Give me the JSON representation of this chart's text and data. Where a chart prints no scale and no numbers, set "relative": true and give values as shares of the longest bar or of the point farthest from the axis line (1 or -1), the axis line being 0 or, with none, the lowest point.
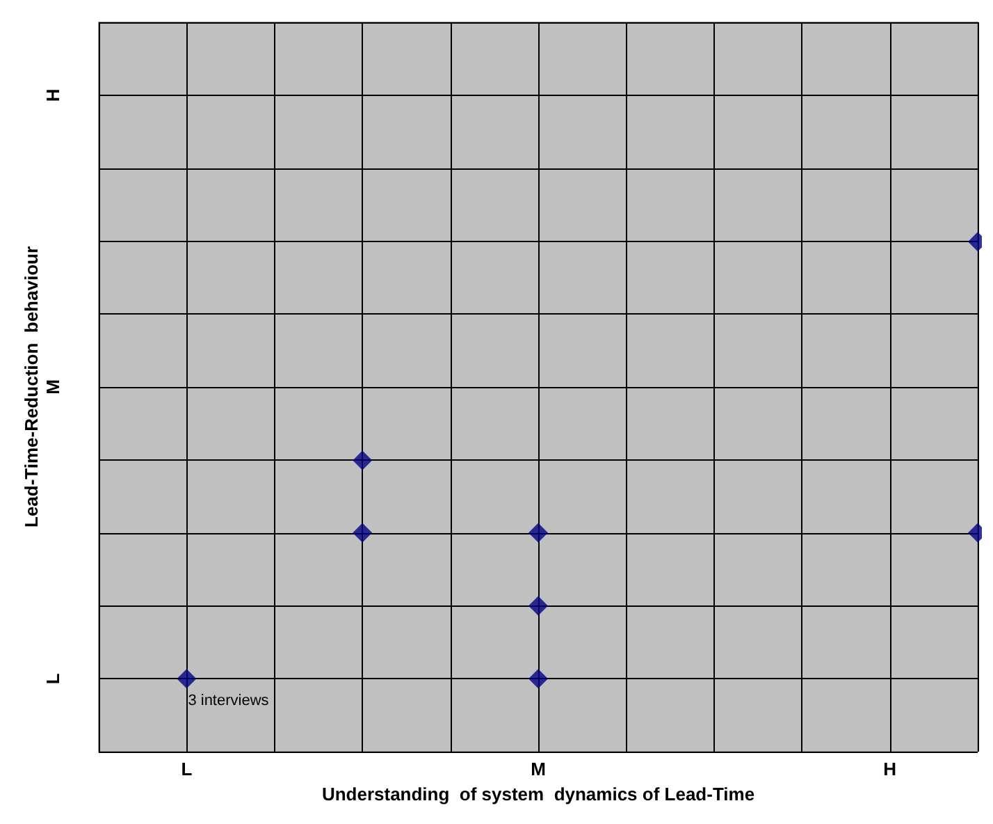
{
  "chart_data": {
    "type": "scatter",
    "xlabel": "Understanding  of system  dynamics of Lead-Time",
    "ylabel": "Lead-Time-Reduction  behaviour",
    "relative": true,
    "categories": [
      null,
      "L",
      null,
      null,
      null,
      "M",
      null,
      null,
      null,
      "H",
      null
    ],
    "series": [
      {
        "color": "#000080",
        "values": [
          null,
          0.143,
          null,
          0.571,
          null,
          0.429,
          null,
          null,
          null,
          null,
          1
        ]
      },
      {
        "color": "#000080",
        "values": [
          null,
          null,
          null,
          0.429,
          null,
          0.286,
          null,
          null,
          null,
          null,
          0.429
        ]
      },
      {
        "color": "#000080",
        "values": [
          null,
          null,
          null,
          null,
          null,
          0.143,
          null,
          null,
          null,
          null,
          null
        ]
      }
    ],
    "grid": true,
    "marker": "diamond",
    "annotations": [
      {
        "text": "3 interviews",
        "x": "L",
        "y": 0.143
      },
      "L",
      "M",
      "H"
    ]
  }
}
